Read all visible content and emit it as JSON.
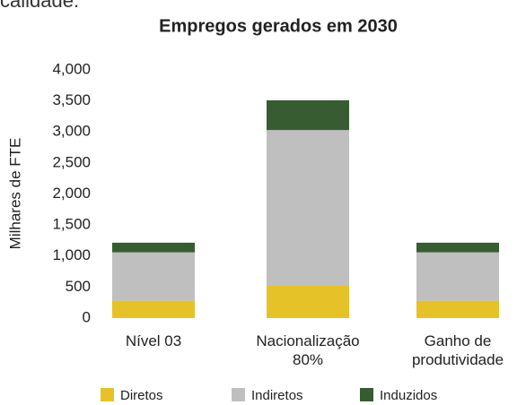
{
  "header": {
    "text": "calidade."
  },
  "chart_data": {
    "type": "stacked_bar",
    "title": "Empregos gerados em 2030",
    "y_label": "Milhares de FTE",
    "categories": [
      "Nível 03",
      "Nacionalização 80%",
      "Ganho de produtividade"
    ],
    "series": [
      {
        "name": "Diretos",
        "color": "#e6c229",
        "values": [
          280,
          520,
          280
        ]
      },
      {
        "name": "Indiretos",
        "color": "#bfbfbf",
        "values": [
          780,
          2510,
          780
        ]
      },
      {
        "name": "Induzidos",
        "color": "#375c32",
        "values": [
          155,
          480,
          155
        ]
      }
    ],
    "ylim": [
      0,
      4000
    ],
    "yticks": [
      0,
      500,
      {
        "value": 1000,
        "label": "1,000"
      },
      {
        "value": 1500,
        "label": "1,500"
      },
      {
        "value": 2000,
        "label": "2,000"
      },
      {
        "value": 2500,
        "label": "2,500"
      },
      {
        "value": 3000,
        "label": "3,000"
      },
      {
        "value": 3500,
        "label": "3,500"
      },
      {
        "value": 4000,
        "label": "4,000"
      }
    ],
    "grid": false,
    "legend": "bottom"
  }
}
